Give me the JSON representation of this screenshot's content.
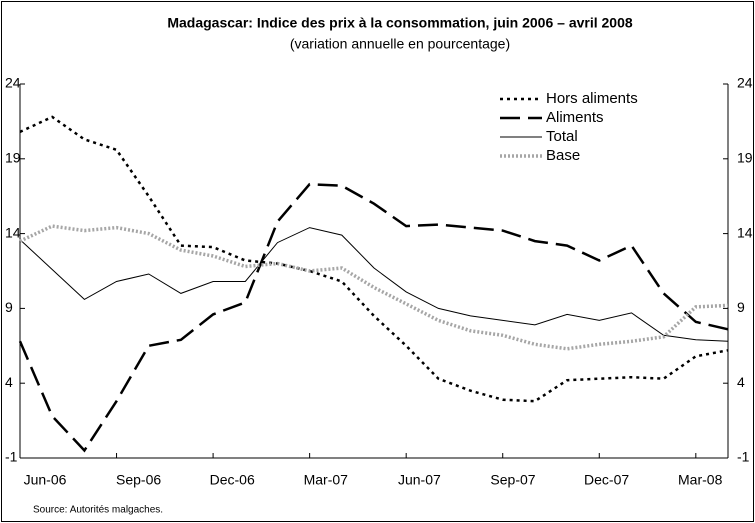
{
  "chart_data": {
    "type": "line",
    "title": "Madagascar: Indice des prix à la consommation, juin 2006 – avril 2008",
    "subtitle": "(variation annuelle en pourcentage)",
    "source": "Source: Autorités malgaches.",
    "categories": [
      "Jun-06",
      null,
      null,
      "Sep-06",
      null,
      null,
      "Dec-06",
      null,
      null,
      "Mar-07",
      null,
      null,
      "Jun-07",
      null,
      null,
      "Sep-07",
      null,
      null,
      "Dec-07",
      null,
      null,
      "Mar-08",
      null
    ],
    "series": [
      {
        "name": "Hors aliments",
        "color": "#000000",
        "dash": "dotted",
        "values": [
          20.8,
          21.8,
          20.3,
          19.6,
          16.5,
          13.2,
          13.1,
          12.2,
          12.0,
          11.5,
          10.8,
          8.5,
          6.5,
          4.3,
          3.5,
          2.9,
          2.8,
          4.2,
          4.3,
          4.4,
          4.3,
          5.8,
          6.2
        ]
      },
      {
        "name": "Aliments",
        "color": "#000000",
        "dash": "long-dash",
        "values": [
          6.8,
          1.8,
          -0.5,
          2.8,
          6.5,
          6.9,
          8.6,
          9.4,
          14.8,
          17.3,
          17.2,
          16.0,
          14.5,
          14.6,
          14.4,
          14.2,
          13.5,
          13.2,
          12.2,
          13.2,
          10.0,
          8.1,
          7.6
        ]
      },
      {
        "name": "Total",
        "color": "#000000",
        "dash": "solid",
        "values": [
          13.6,
          11.6,
          9.6,
          10.8,
          11.3,
          10.0,
          10.8,
          10.8,
          13.4,
          14.4,
          13.9,
          11.7,
          10.1,
          9.0,
          8.5,
          8.2,
          7.9,
          8.6,
          8.2,
          8.7,
          7.2,
          6.9,
          6.8
        ]
      },
      {
        "name": "Base",
        "color": "#a6a6a6",
        "dash": "dotted-thick",
        "values": [
          13.5,
          14.5,
          14.2,
          14.4,
          14.0,
          12.9,
          12.5,
          11.8,
          12.0,
          11.5,
          11.7,
          10.4,
          9.3,
          8.2,
          7.5,
          7.2,
          6.6,
          6.3,
          6.6,
          6.8,
          7.1,
          9.1,
          9.2
        ]
      }
    ],
    "ylim": [
      -1,
      24
    ],
    "yticks": [
      -1,
      4,
      9,
      14,
      19,
      24
    ],
    "y2lim": [
      -1,
      24
    ],
    "y2ticks": [
      -1,
      4,
      9,
      14,
      19,
      24
    ],
    "legend": "top-right",
    "grid": false
  }
}
